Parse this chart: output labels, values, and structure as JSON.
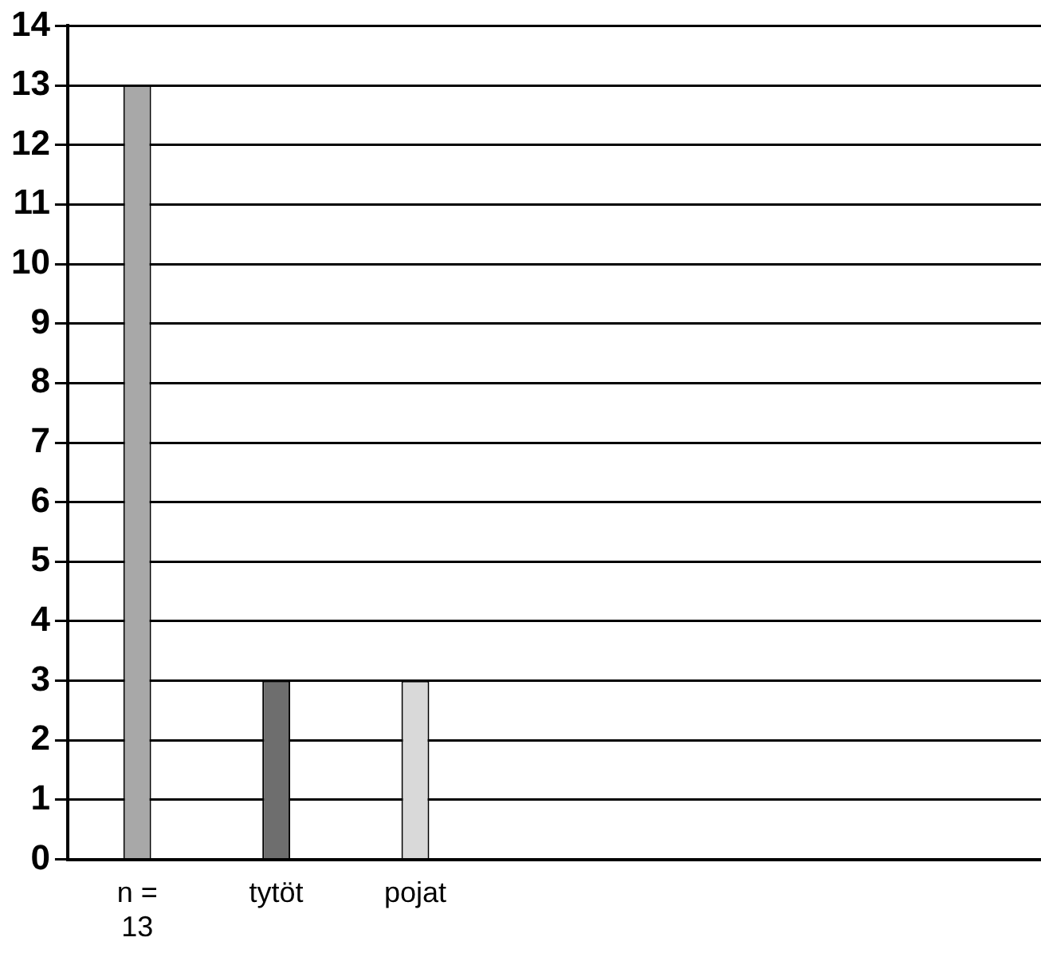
{
  "chart_data": {
    "type": "bar",
    "categories": [
      "n = 13",
      "tytöt",
      "pojat",
      null,
      null,
      null,
      null
    ],
    "values": [
      13,
      3,
      3,
      null,
      null,
      null,
      null
    ],
    "colors": [
      "#a8a8a8",
      "#6e6e6e",
      "#d9d9d9",
      null,
      null,
      null,
      null
    ],
    "ylim": [
      0,
      14
    ],
    "yticks": [
      0,
      1,
      2,
      3,
      4,
      5,
      6,
      7,
      8,
      9,
      10,
      11,
      12,
      13,
      14
    ],
    "grid": "y",
    "legend": false
  }
}
